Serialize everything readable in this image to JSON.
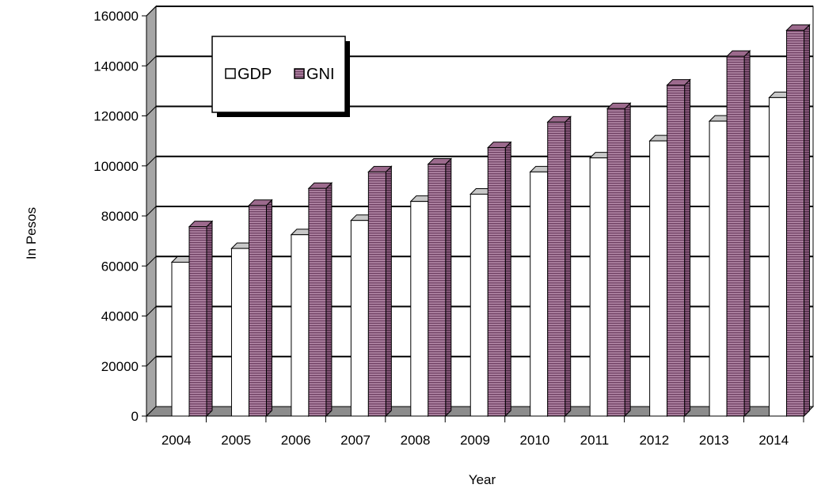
{
  "chart_data": {
    "type": "bar",
    "categories": [
      "2004",
      "2005",
      "2006",
      "2007",
      "2008",
      "2009",
      "2010",
      "2011",
      "2012",
      "2013",
      "2014"
    ],
    "series": [
      {
        "name": "GDP",
        "values": [
          61500,
          67000,
          72500,
          78200,
          85800,
          88700,
          97600,
          103200,
          110000,
          117900,
          127300
        ],
        "color": "#ffffff"
      },
      {
        "name": "GNI",
        "values": [
          75700,
          84200,
          91000,
          97600,
          100700,
          107300,
          117500,
          122900,
          132300,
          143800,
          154200
        ],
        "color": "#a06d92"
      }
    ],
    "xlabel": "Year",
    "ylabel": "In Pesos",
    "ylim": [
      0,
      160000
    ],
    "yticks": [
      0,
      20000,
      40000,
      60000,
      80000,
      100000,
      120000,
      140000,
      160000
    ],
    "grid": true,
    "legend_position": "top-left",
    "style": "3d-clustered-column"
  }
}
